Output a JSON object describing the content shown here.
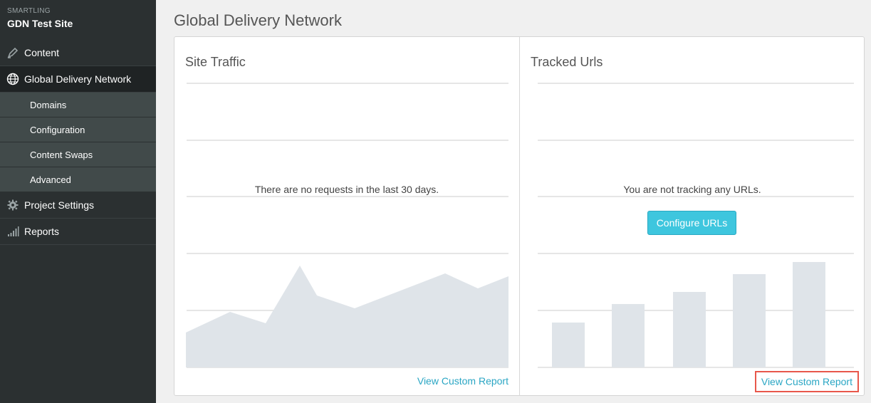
{
  "sidebar": {
    "org": "SMARTLING",
    "site": "GDN Test Site",
    "items": [
      {
        "label": "Content",
        "icon": "pencil-icon"
      },
      {
        "label": "Global Delivery Network",
        "icon": "globe-icon"
      },
      {
        "label": "Project Settings",
        "icon": "gear-icon"
      },
      {
        "label": "Reports",
        "icon": "signal-bars-icon"
      }
    ],
    "gdn_subitems": [
      "Domains",
      "Configuration",
      "Content Swaps",
      "Advanced"
    ]
  },
  "page": {
    "title": "Global Delivery Network"
  },
  "site_traffic": {
    "title": "Site Traffic",
    "empty_message": "There are no requests in the last 30 days.",
    "link": "View Custom Report"
  },
  "tracked_urls": {
    "title": "Tracked Urls",
    "empty_message": "You are not tracking any URLs.",
    "button": "Configure URLs",
    "link": "View Custom Report"
  },
  "colors": {
    "sidebar_bg": "#2b3031",
    "accent": "#3ec6de",
    "link": "#2aa6c4",
    "placeholder_fill": "#dfe4e9",
    "highlight_border": "#e8574b"
  }
}
